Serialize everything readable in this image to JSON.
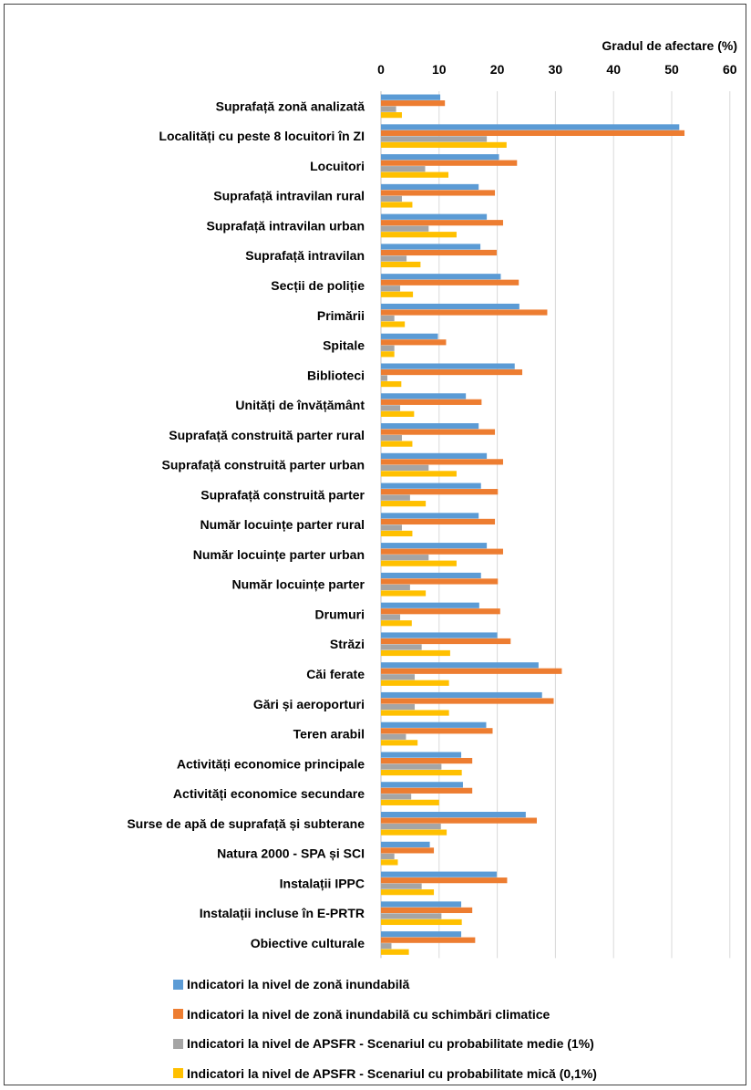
{
  "chart_data": {
    "type": "bar",
    "orientation": "horizontal",
    "axis_title": "Gradul de afectare (%)",
    "xlim": [
      0,
      60
    ],
    "xticks": [
      0,
      10,
      20,
      30,
      40,
      50,
      60
    ],
    "x_axis_position": "top",
    "grid": true,
    "legend_position": "bottom",
    "categories": [
      "Suprafață zonă analizată",
      "Localități cu peste 8 locuitori în ZI",
      "Locuitori",
      "Suprafață intravilan rural",
      "Suprafață intravilan urban",
      "Suprafață intravilan",
      "Secții de poliție",
      "Primării",
      "Spitale",
      "Biblioteci",
      "Unități de învățământ",
      "Suprafață construită parter rural",
      "Suprafață construită parter urban",
      "Suprafață construită parter",
      "Număr locuințe parter rural",
      "Număr locuințe parter urban",
      "Număr locuințe parter",
      "Drumuri",
      "Străzi",
      "Căi ferate",
      "Gări și aeroporturi",
      "Teren arabil",
      "Activități economice principale",
      "Activități economice secundare",
      "Surse de apă de suprafață și subterane",
      "Natura 2000 - SPA și SCI",
      "Instalații IPPC",
      "Instalații incluse în E-PRTR",
      "Obiective culturale"
    ],
    "series": [
      {
        "name": "Indicatori la nivel de zonă inundabilă",
        "color": "#5B9BD5",
        "values": [
          10.2,
          51.3,
          20.3,
          16.8,
          18.2,
          17.1,
          20.6,
          23.8,
          9.8,
          23.0,
          14.6,
          16.8,
          18.2,
          17.2,
          16.8,
          18.2,
          17.2,
          16.9,
          20.0,
          27.1,
          27.7,
          18.1,
          13.8,
          14.1,
          24.9,
          8.4,
          19.9,
          13.8,
          13.8
        ]
      },
      {
        "name": "Indicatori la nivel de zonă inundabilă cu schimbări climatice",
        "color": "#ED7D31",
        "values": [
          11.0,
          52.2,
          23.4,
          19.6,
          21.0,
          19.9,
          23.7,
          28.6,
          11.2,
          24.3,
          17.3,
          19.6,
          21.0,
          20.1,
          19.6,
          21.0,
          20.1,
          20.5,
          22.3,
          31.1,
          29.7,
          19.2,
          15.7,
          15.7,
          26.8,
          9.1,
          21.7,
          15.7,
          16.2
        ]
      },
      {
        "name": "Indicatori la nivel de APSFR - Scenariul cu probabilitate medie (1%)",
        "color": "#A5A5A5",
        "values": [
          2.6,
          18.2,
          7.6,
          3.6,
          8.2,
          4.4,
          3.3,
          2.3,
          2.3,
          1.1,
          3.3,
          3.6,
          8.2,
          5.0,
          3.6,
          8.2,
          5.0,
          3.3,
          7.0,
          5.8,
          5.8,
          4.3,
          10.4,
          5.2,
          10.3,
          2.3,
          7.0,
          10.4,
          1.8
        ]
      },
      {
        "name": "Indicatori la nivel de APSFR - Scenariul cu probabilitate mică (0,1%)",
        "color": "#FFC000",
        "values": [
          3.6,
          21.6,
          11.6,
          5.4,
          13.0,
          6.8,
          5.5,
          4.1,
          2.3,
          3.5,
          5.7,
          5.4,
          13.0,
          7.7,
          5.4,
          13.0,
          7.7,
          5.3,
          11.9,
          11.7,
          11.7,
          6.3,
          13.9,
          10.0,
          11.3,
          2.9,
          9.1,
          13.9,
          4.8
        ]
      }
    ]
  }
}
